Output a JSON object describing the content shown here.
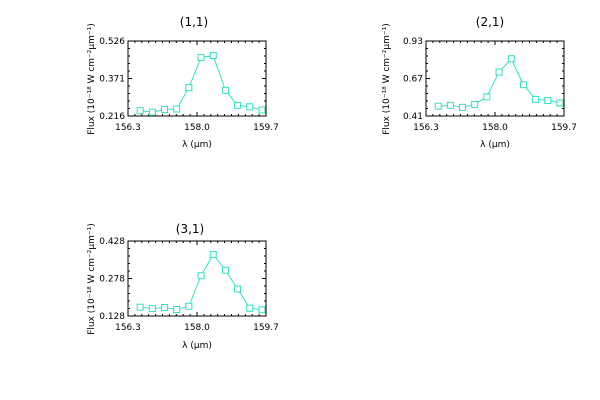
{
  "colors": {
    "series": "#33e0c0",
    "axes": "#000000",
    "background": "#ffffff"
  },
  "chart_data": [
    {
      "type": "line",
      "title": "(1,1)",
      "xlabel": "λ (μm)",
      "ylabel": "Flux (10⁻¹⁸ W cm⁻²μm⁻¹)",
      "xlim": [
        156.3,
        159.7
      ],
      "ylim": [
        0.216,
        0.526
      ],
      "x_tick_labels": [
        "156.3",
        "158.0",
        "159.7"
      ],
      "y_tick_labels": [
        "0.216",
        "0.371",
        "0.526"
      ],
      "grid": false,
      "marker": "square",
      "x": [
        156.6,
        156.9,
        157.2,
        157.5,
        157.8,
        158.1,
        158.4,
        158.7,
        159.0,
        159.3,
        159.6
      ],
      "y": [
        0.238,
        0.232,
        0.243,
        0.245,
        0.333,
        0.458,
        0.466,
        0.322,
        0.26,
        0.254,
        0.241
      ]
    },
    {
      "type": "line",
      "title": "(2,1)",
      "xlabel": "λ (μm)",
      "ylabel": "Flux (10⁻¹⁸ W cm⁻²μm⁻¹)",
      "xlim": [
        156.3,
        159.7
      ],
      "ylim": [
        0.41,
        0.93
      ],
      "x_tick_labels": [
        "156.3",
        "158.0",
        "159.7"
      ],
      "y_tick_labels": [
        "0.41",
        "0.67",
        "0.93"
      ],
      "grid": false,
      "marker": "square",
      "x": [
        156.6,
        156.9,
        157.2,
        157.5,
        157.8,
        158.1,
        158.4,
        158.7,
        159.0,
        159.3,
        159.6
      ],
      "y": [
        0.478,
        0.484,
        0.47,
        0.49,
        0.543,
        0.715,
        0.807,
        0.627,
        0.525,
        0.518,
        0.5
      ]
    },
    {
      "type": "line",
      "title": "(3,1)",
      "xlabel": "λ (μm)",
      "ylabel": "Flux (10⁻¹⁸ W cm⁻²μm⁻¹)",
      "xlim": [
        156.3,
        159.7
      ],
      "ylim": [
        0.128,
        0.428
      ],
      "x_tick_labels": [
        "156.3",
        "158.0",
        "159.7"
      ],
      "y_tick_labels": [
        "0.128",
        "0.278",
        "0.428"
      ],
      "grid": false,
      "marker": "square",
      "x": [
        156.6,
        156.9,
        157.2,
        157.5,
        157.8,
        158.1,
        158.4,
        158.7,
        159.0,
        159.3,
        159.6
      ],
      "y": [
        0.163,
        0.158,
        0.162,
        0.154,
        0.167,
        0.289,
        0.374,
        0.311,
        0.236,
        0.159,
        0.153
      ]
    }
  ]
}
